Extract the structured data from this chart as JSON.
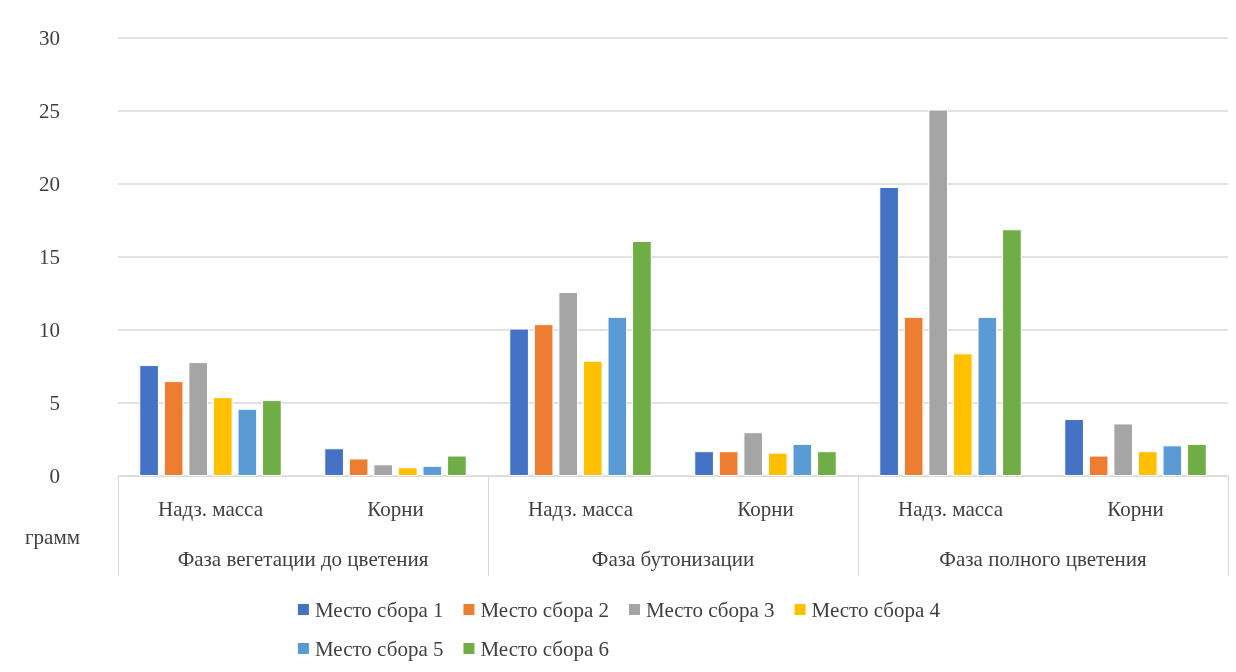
{
  "chart_data": {
    "type": "bar",
    "ylabel": "грамм",
    "categories": [
      "Надз. масса",
      "Корни",
      "Надз. масса",
      "Корни",
      "Надз. масса",
      "Корни"
    ],
    "annotations": [
      "Фаза вегетации до цветения",
      "Фаза бутонизации",
      "Фаза полного цветения"
    ],
    "series": [
      {
        "name": "Место сбора 1",
        "color": "#4472c4",
        "values": [
          7.6,
          1.9,
          10.1,
          1.7,
          19.8,
          3.9
        ]
      },
      {
        "name": "Место сбора 2",
        "color": "#ed7d31",
        "values": [
          6.5,
          1.2,
          10.4,
          1.7,
          10.9,
          1.4
        ]
      },
      {
        "name": "Место сбора 3",
        "color": "#a5a5a5",
        "values": [
          7.8,
          0.8,
          12.6,
          3.0,
          25.1,
          3.6
        ]
      },
      {
        "name": "Место сбора 4",
        "color": "#ffc000",
        "values": [
          5.4,
          0.6,
          7.9,
          1.6,
          8.4,
          1.7
        ]
      },
      {
        "name": "Место сбора 5",
        "color": "#5b9bd5",
        "values": [
          4.6,
          0.7,
          10.9,
          2.2,
          10.9,
          2.1
        ]
      },
      {
        "name": "Место сбора 6",
        "color": "#70ad47",
        "values": [
          5.2,
          1.4,
          16.1,
          1.7,
          16.9,
          2.2
        ]
      }
    ],
    "ylim": [
      0,
      30
    ],
    "yticks": [
      0,
      5,
      10,
      15,
      20,
      25,
      30
    ],
    "grid": "y",
    "legend": "bottom"
  }
}
